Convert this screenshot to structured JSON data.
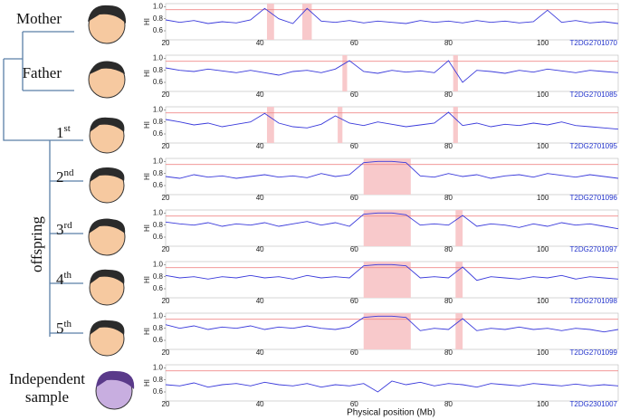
{
  "x_axis_label": "Physical position (Mb)",
  "tree": {
    "parents": [
      "Mother",
      "Father"
    ],
    "offspring": [
      {
        "n": "1",
        "sup": "st"
      },
      {
        "n": "2",
        "sup": "nd"
      },
      {
        "n": "3",
        "sup": "rd"
      },
      {
        "n": "4",
        "sup": "th"
      },
      {
        "n": "5",
        "sup": "th"
      }
    ],
    "group": "offspring",
    "independent": [
      "Independent",
      "sample"
    ]
  },
  "chart_data": [
    {
      "type": "line",
      "sample_id": "T2DG2701070",
      "ylabel": "HI",
      "color": "#3a3adb",
      "reference_line": 0.95,
      "reference_color": "#f08a8a",
      "highlight_color": "#f8c9cb",
      "highlights": [
        [
          41.5,
          43
        ],
        [
          49,
          51
        ]
      ],
      "xlim": [
        20,
        116
      ],
      "xticks": [
        20,
        40,
        60,
        80,
        100
      ],
      "ylim": [
        0.45,
        1.05
      ],
      "yticks": [
        0.6,
        0.8,
        {
          "value": 1,
          "label": "1.0"
        }
      ],
      "x": [
        20,
        23,
        26,
        29,
        32,
        35,
        38,
        41,
        44,
        47,
        50,
        53,
        56,
        59,
        62,
        65,
        68,
        71,
        74,
        77,
        80,
        83,
        86,
        89,
        92,
        95,
        98,
        101,
        104,
        107,
        110,
        113,
        116
      ],
      "values": [
        0.78,
        0.74,
        0.77,
        0.72,
        0.75,
        0.73,
        0.78,
        0.97,
        0.8,
        0.72,
        0.97,
        0.76,
        0.74,
        0.77,
        0.73,
        0.76,
        0.74,
        0.72,
        0.77,
        0.74,
        0.76,
        0.73,
        0.77,
        0.74,
        0.76,
        0.73,
        0.75,
        0.94,
        0.74,
        0.77,
        0.73,
        0.75,
        0.72
      ]
    },
    {
      "type": "line",
      "sample_id": "T2DG2701085",
      "ylabel": "HI",
      "color": "#3a3adb",
      "reference_line": 0.95,
      "reference_color": "#f08a8a",
      "highlight_color": "#f8c9cb",
      "highlights": [
        [
          57.5,
          58.5
        ],
        [
          81,
          82
        ]
      ],
      "xlim": [
        20,
        116
      ],
      "xticks": [
        20,
        40,
        60,
        80,
        100
      ],
      "ylim": [
        0.45,
        1.05
      ],
      "yticks": [
        0.6,
        0.8,
        {
          "value": 1,
          "label": "1.0"
        }
      ],
      "x": [
        20,
        23,
        26,
        29,
        32,
        35,
        38,
        41,
        44,
        47,
        50,
        53,
        56,
        59,
        62,
        65,
        68,
        71,
        74,
        77,
        80,
        83,
        86,
        89,
        92,
        95,
        98,
        101,
        104,
        107,
        110,
        113,
        116
      ],
      "values": [
        0.84,
        0.8,
        0.78,
        0.82,
        0.79,
        0.76,
        0.8,
        0.76,
        0.72,
        0.78,
        0.8,
        0.76,
        0.82,
        0.96,
        0.78,
        0.75,
        0.8,
        0.77,
        0.79,
        0.76,
        0.96,
        0.6,
        0.8,
        0.78,
        0.75,
        0.8,
        0.77,
        0.82,
        0.79,
        0.76,
        0.8,
        0.78,
        0.76
      ]
    },
    {
      "type": "line",
      "sample_id": "T2DG2701095",
      "ylabel": "HI",
      "color": "#3a3adb",
      "reference_line": 0.95,
      "reference_color": "#f08a8a",
      "highlight_color": "#f8c9cb",
      "highlights": [
        [
          41.5,
          43
        ],
        [
          56.5,
          57.5
        ],
        [
          81,
          82
        ]
      ],
      "xlim": [
        20,
        116
      ],
      "xticks": [
        20,
        40,
        60,
        80,
        100
      ],
      "ylim": [
        0.45,
        1.05
      ],
      "yticks": [
        0.6,
        0.8,
        {
          "value": 1,
          "label": "1.0"
        }
      ],
      "x": [
        20,
        23,
        26,
        29,
        32,
        35,
        38,
        41,
        44,
        47,
        50,
        53,
        56,
        59,
        62,
        65,
        68,
        71,
        74,
        77,
        80,
        83,
        86,
        89,
        92,
        95,
        98,
        101,
        104,
        107,
        110,
        113,
        116
      ],
      "values": [
        0.84,
        0.8,
        0.75,
        0.78,
        0.72,
        0.76,
        0.8,
        0.94,
        0.78,
        0.72,
        0.7,
        0.76,
        0.9,
        0.78,
        0.74,
        0.8,
        0.76,
        0.72,
        0.75,
        0.78,
        0.96,
        0.74,
        0.78,
        0.72,
        0.76,
        0.74,
        0.78,
        0.75,
        0.8,
        0.74,
        0.72,
        0.7,
        0.68
      ]
    },
    {
      "type": "line",
      "sample_id": "T2DG2701096",
      "ylabel": "HI",
      "color": "#3a3adb",
      "reference_line": 0.95,
      "reference_color": "#f08a8a",
      "highlight_color": "#f8c9cb",
      "highlights": [
        [
          62,
          72
        ]
      ],
      "xlim": [
        20,
        116
      ],
      "xticks": [
        20,
        40,
        60,
        80,
        100
      ],
      "ylim": [
        0.45,
        1.05
      ],
      "yticks": [
        0.6,
        0.8,
        {
          "value": 1,
          "label": "1.0"
        }
      ],
      "x": [
        20,
        23,
        26,
        29,
        32,
        35,
        38,
        41,
        44,
        47,
        50,
        53,
        56,
        59,
        62,
        65,
        68,
        71,
        74,
        77,
        80,
        83,
        86,
        89,
        92,
        95,
        98,
        101,
        104,
        107,
        110,
        113,
        116
      ],
      "values": [
        0.75,
        0.72,
        0.78,
        0.74,
        0.76,
        0.72,
        0.75,
        0.78,
        0.74,
        0.76,
        0.73,
        0.8,
        0.75,
        0.78,
        0.98,
        1,
        1,
        0.98,
        0.76,
        0.74,
        0.8,
        0.75,
        0.78,
        0.72,
        0.76,
        0.78,
        0.74,
        0.8,
        0.77,
        0.74,
        0.78,
        0.75,
        0.72
      ]
    },
    {
      "type": "line",
      "sample_id": "T2DG2701097",
      "ylabel": "HI",
      "color": "#3a3adb",
      "reference_line": 0.95,
      "reference_color": "#f08a8a",
      "highlight_color": "#f8c9cb",
      "highlights": [
        [
          62,
          72
        ],
        [
          81.5,
          83
        ]
      ],
      "xlim": [
        20,
        116
      ],
      "xticks": [
        20,
        40,
        60,
        80,
        100
      ],
      "ylim": [
        0.45,
        1.05
      ],
      "yticks": [
        0.6,
        0.8,
        {
          "value": 1,
          "label": "1.0"
        }
      ],
      "x": [
        20,
        23,
        26,
        29,
        32,
        35,
        38,
        41,
        44,
        47,
        50,
        53,
        56,
        59,
        62,
        65,
        68,
        71,
        74,
        77,
        80,
        83,
        86,
        89,
        92,
        95,
        98,
        101,
        104,
        107,
        110,
        113,
        116
      ],
      "values": [
        0.85,
        0.82,
        0.8,
        0.84,
        0.78,
        0.82,
        0.8,
        0.84,
        0.78,
        0.82,
        0.86,
        0.8,
        0.84,
        0.78,
        0.98,
        1,
        1,
        0.97,
        0.8,
        0.82,
        0.8,
        0.96,
        0.78,
        0.82,
        0.8,
        0.76,
        0.82,
        0.78,
        0.84,
        0.8,
        0.82,
        0.78,
        0.74
      ]
    },
    {
      "type": "line",
      "sample_id": "T2DG2701098",
      "ylabel": "HI",
      "color": "#3a3adb",
      "reference_line": 0.95,
      "reference_color": "#f08a8a",
      "highlight_color": "#f8c9cb",
      "highlights": [
        [
          62,
          72
        ],
        [
          81.5,
          83
        ]
      ],
      "xlim": [
        20,
        116
      ],
      "xticks": [
        20,
        40,
        60,
        80,
        100
      ],
      "ylim": [
        0.45,
        1.05
      ],
      "yticks": [
        0.6,
        0.8,
        {
          "value": 1,
          "label": "1.0"
        }
      ],
      "x": [
        20,
        23,
        26,
        29,
        32,
        35,
        38,
        41,
        44,
        47,
        50,
        53,
        56,
        59,
        62,
        65,
        68,
        71,
        74,
        77,
        80,
        83,
        86,
        89,
        92,
        95,
        98,
        101,
        104,
        107,
        110,
        113,
        116
      ],
      "values": [
        0.82,
        0.78,
        0.8,
        0.76,
        0.8,
        0.78,
        0.82,
        0.78,
        0.8,
        0.76,
        0.82,
        0.78,
        0.8,
        0.78,
        0.98,
        1,
        1,
        0.98,
        0.78,
        0.8,
        0.78,
        0.96,
        0.74,
        0.8,
        0.78,
        0.76,
        0.8,
        0.78,
        0.82,
        0.76,
        0.8,
        0.78,
        0.76
      ]
    },
    {
      "type": "line",
      "sample_id": "T2DG2701099",
      "ylabel": "HI",
      "color": "#3a3adb",
      "reference_line": 0.95,
      "reference_color": "#f08a8a",
      "highlight_color": "#f8c9cb",
      "highlights": [
        [
          62,
          72
        ],
        [
          81.5,
          83
        ]
      ],
      "xlim": [
        20,
        116
      ],
      "xticks": [
        20,
        40,
        60,
        80,
        100
      ],
      "ylim": [
        0.45,
        1.05
      ],
      "yticks": [
        0.6,
        0.8,
        {
          "value": 1,
          "label": "1.0"
        }
      ],
      "x": [
        20,
        23,
        26,
        29,
        32,
        35,
        38,
        41,
        44,
        47,
        50,
        53,
        56,
        59,
        62,
        65,
        68,
        71,
        74,
        77,
        80,
        83,
        86,
        89,
        92,
        95,
        98,
        101,
        104,
        107,
        110,
        113,
        116
      ],
      "values": [
        0.86,
        0.8,
        0.84,
        0.78,
        0.82,
        0.8,
        0.84,
        0.78,
        0.82,
        0.8,
        0.84,
        0.8,
        0.78,
        0.82,
        0.98,
        1,
        1,
        0.98,
        0.76,
        0.8,
        0.78,
        0.96,
        0.76,
        0.8,
        0.78,
        0.82,
        0.78,
        0.8,
        0.76,
        0.8,
        0.78,
        0.74,
        0.78
      ]
    },
    {
      "type": "line",
      "sample_id": "T2DG2301007",
      "ylabel": "HI",
      "color": "#3a3adb",
      "reference_line": 0.95,
      "reference_color": "#f08a8a",
      "highlight_color": "#f8c9cb",
      "highlights": [],
      "xlim": [
        20,
        116
      ],
      "xticks": [
        20,
        40,
        60,
        80,
        100
      ],
      "ylim": [
        0.45,
        1.05
      ],
      "yticks": [
        0.6,
        0.8,
        {
          "value": 1,
          "label": "1.0"
        }
      ],
      "x": [
        20,
        23,
        26,
        29,
        32,
        35,
        38,
        41,
        44,
        47,
        50,
        53,
        56,
        59,
        62,
        65,
        68,
        71,
        74,
        77,
        80,
        83,
        86,
        89,
        92,
        95,
        98,
        101,
        104,
        107,
        110,
        113,
        116
      ],
      "values": [
        0.72,
        0.7,
        0.75,
        0.68,
        0.72,
        0.74,
        0.7,
        0.76,
        0.72,
        0.7,
        0.74,
        0.68,
        0.72,
        0.7,
        0.74,
        0.6,
        0.78,
        0.72,
        0.76,
        0.7,
        0.74,
        0.72,
        0.68,
        0.74,
        0.72,
        0.7,
        0.74,
        0.72,
        0.7,
        0.73,
        0.7,
        0.72,
        0.7
      ]
    }
  ]
}
